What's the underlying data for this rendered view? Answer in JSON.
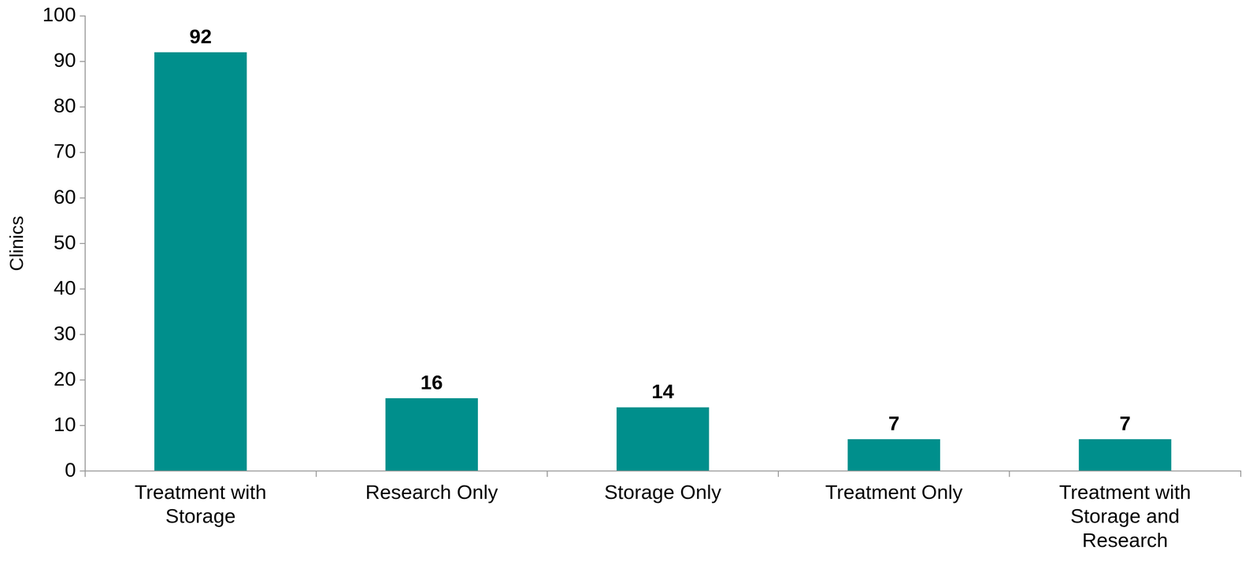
{
  "chart_data": {
    "type": "bar",
    "y_label": "Clinics",
    "categories": [
      "Treatment with Storage",
      "Research Only",
      "Storage Only",
      "Treatment Only",
      "Treatment with Storage and Research"
    ],
    "values": [
      92,
      16,
      14,
      7,
      7
    ],
    "color": "#008f8c",
    "ylim": [
      0,
      100
    ],
    "yticks": [
      0,
      10,
      20,
      30,
      40,
      50,
      60,
      70,
      80,
      90,
      100
    ],
    "grid": false,
    "data_labels": true
  }
}
